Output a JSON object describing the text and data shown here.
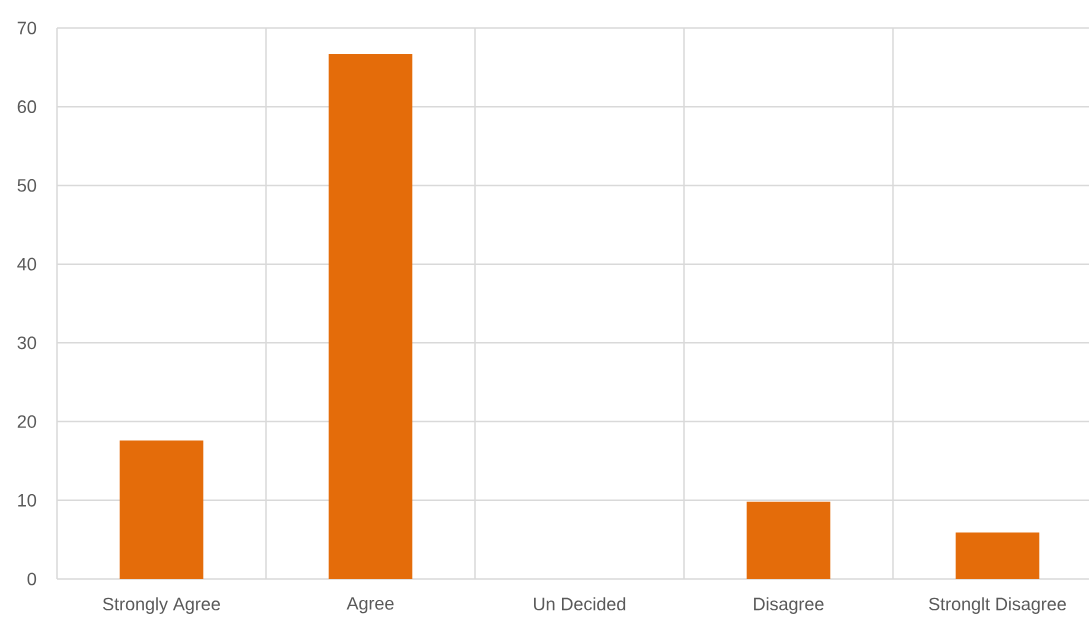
{
  "chart_data": {
    "type": "bar",
    "categories": [
      "Strongly Agree",
      "Agree",
      "Un Decided",
      "Disagree",
      "Stronglt Disagree"
    ],
    "values": [
      17.6,
      66.7,
      0,
      9.8,
      5.9
    ],
    "color": "#e46c0a",
    "ylim": [
      0,
      70
    ],
    "yticks": [
      0,
      10,
      20,
      30,
      40,
      50,
      60,
      70
    ],
    "grid": true
  }
}
